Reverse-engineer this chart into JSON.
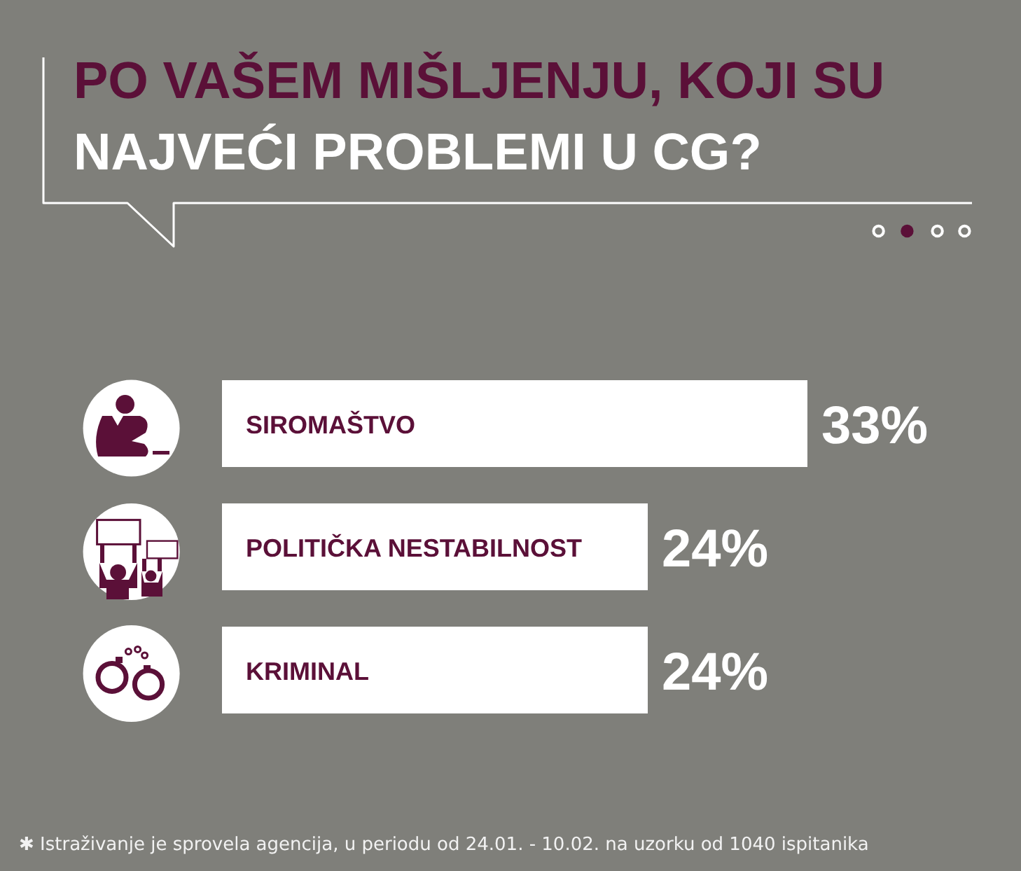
{
  "chart_data": {
    "type": "bar",
    "orientation": "horizontal",
    "title": "PO VAŠEM MIŠLJENJU, KOJI SU\nNAJVEĆI PROBLEMI U CG?",
    "categories": [
      "SIROMAŠTVO",
      "POLITIČKA NESTABILNOST",
      "KRIMINAL"
    ],
    "values": [
      33,
      24,
      24
    ],
    "color": "#ffffff",
    "value_labels": [
      "33%",
      "24%",
      "24%"
    ],
    "annotations": [
      "✱ Istraživanje je sprovela agencija, u periodu od 24.01. - 10.02. na uzorku od 1040 ispitanika"
    ]
  }
}
